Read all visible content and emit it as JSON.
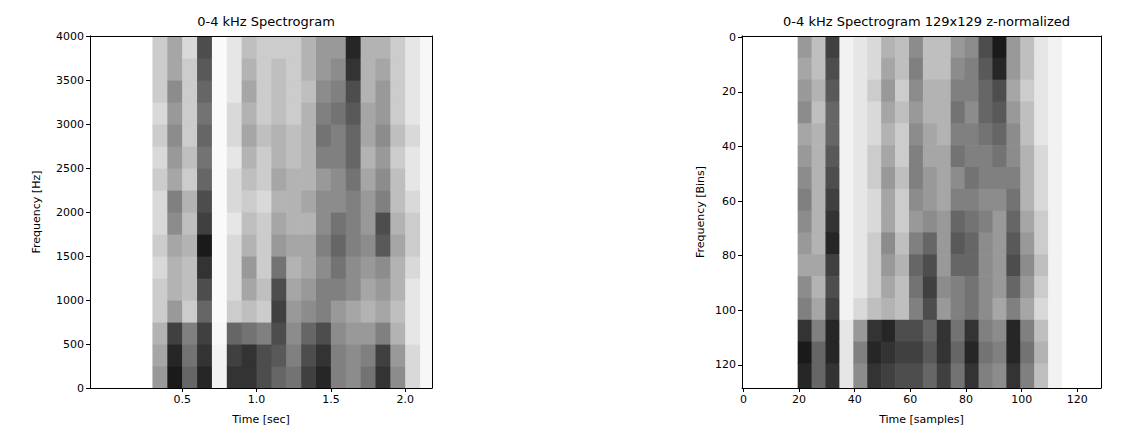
{
  "chart_data": [
    {
      "type": "heatmap",
      "title": "0-4 kHz Spectrogram",
      "x_label": "Time [sec]",
      "y_label": "Frequency [Hz]",
      "xlim": [
        -0.12,
        2.18
      ],
      "ylim": [
        0,
        4000
      ],
      "xticks": [
        0.5,
        {
          "value": 1,
          "label": "1.0"
        },
        1.5,
        {
          "value": 2,
          "label": "2.0"
        }
      ],
      "yticks": [
        0,
        500,
        1000,
        1500,
        2000,
        2500,
        3000,
        3500,
        4000
      ],
      "grid": false,
      "color": "#000000",
      "zlim": [
        0,
        1
      ],
      "cells": {
        "x_edges": [
          -0.12,
          0,
          0.1,
          0.2,
          0.3,
          0.4,
          0.5,
          0.6,
          0.7,
          0.8,
          0.9,
          1.0,
          1.1,
          1.2,
          1.3,
          1.4,
          1.5,
          1.6,
          1.7,
          1.8,
          1.9,
          2.0,
          2.1,
          2.18
        ],
        "y_edges": [
          0,
          250,
          500,
          750,
          1000,
          1250,
          1500,
          1750,
          2000,
          2250,
          2500,
          2750,
          3000,
          3250,
          3500,
          3750,
          4000
        ],
        "values": [
          [
            0,
            0,
            0,
            0,
            0,
            0,
            0,
            0,
            0,
            0,
            0,
            0,
            0,
            0,
            0,
            0
          ],
          [
            0,
            0,
            0,
            0,
            0,
            0,
            0,
            0,
            0,
            0,
            0,
            0,
            0,
            0,
            0,
            0
          ],
          [
            0,
            0,
            0,
            0,
            0,
            0,
            0,
            0,
            0,
            0,
            0,
            0,
            0,
            0,
            0,
            0
          ],
          [
            0,
            0,
            0,
            0,
            0,
            0,
            0,
            0,
            0,
            0,
            0,
            0,
            0,
            0,
            0,
            0
          ],
          [
            0.4,
            0.35,
            0.3,
            0.2,
            0.2,
            0.15,
            0.2,
            0.15,
            0.15,
            0.2,
            0.15,
            0.2,
            0.15,
            0.2,
            0.2,
            0.2
          ],
          [
            0.9,
            0.85,
            0.75,
            0.4,
            0.3,
            0.3,
            0.35,
            0.45,
            0.5,
            0.35,
            0.4,
            0.45,
            0.4,
            0.45,
            0.35,
            0.35
          ],
          [
            0.6,
            0.55,
            0.5,
            0.2,
            0.25,
            0.25,
            0.3,
            0.25,
            0.3,
            0.2,
            0.25,
            0.2,
            0.2,
            0.2,
            0.2,
            0.15
          ],
          [
            0.85,
            0.8,
            0.75,
            0.6,
            0.7,
            0.8,
            0.9,
            0.75,
            0.7,
            0.6,
            0.55,
            0.6,
            0.55,
            0.6,
            0.65,
            0.7
          ],
          [
            0.05,
            0.05,
            0.03,
            0.02,
            0.02,
            0.02,
            0.02,
            0.02,
            0.02,
            0.02,
            0.02,
            0.02,
            0.02,
            0.02,
            0.02,
            0.02
          ],
          [
            0.8,
            0.75,
            0.6,
            0.2,
            0.15,
            0.15,
            0.15,
            0.1,
            0.15,
            0.15,
            0.1,
            0.15,
            0.15,
            0.1,
            0.1,
            0.1
          ],
          [
            0.8,
            0.8,
            0.55,
            0.25,
            0.35,
            0.4,
            0.3,
            0.25,
            0.2,
            0.25,
            0.3,
            0.35,
            0.3,
            0.35,
            0.3,
            0.25
          ],
          [
            0.7,
            0.7,
            0.5,
            0.2,
            0.25,
            0.2,
            0.2,
            0.2,
            0.15,
            0.2,
            0.2,
            0.25,
            0.2,
            0.2,
            0.2,
            0.2
          ],
          [
            0.6,
            0.65,
            0.7,
            0.75,
            0.7,
            0.55,
            0.4,
            0.35,
            0.3,
            0.35,
            0.3,
            0.3,
            0.25,
            0.25,
            0.25,
            0.2
          ],
          [
            0.55,
            0.5,
            0.45,
            0.4,
            0.35,
            0.3,
            0.35,
            0.3,
            0.3,
            0.3,
            0.25,
            0.25,
            0.2,
            0.2,
            0.2,
            0.2
          ],
          [
            0.75,
            0.7,
            0.6,
            0.45,
            0.4,
            0.35,
            0.35,
            0.3,
            0.35,
            0.3,
            0.3,
            0.3,
            0.3,
            0.25,
            0.3,
            0.3
          ],
          [
            0.85,
            0.8,
            0.7,
            0.5,
            0.5,
            0.45,
            0.5,
            0.45,
            0.45,
            0.4,
            0.5,
            0.55,
            0.5,
            0.45,
            0.4,
            0.4
          ],
          [
            0.5,
            0.5,
            0.45,
            0.4,
            0.5,
            0.55,
            0.6,
            0.55,
            0.45,
            0.45,
            0.5,
            0.5,
            0.55,
            0.5,
            0.45,
            0.4
          ],
          [
            0.45,
            0.45,
            0.4,
            0.35,
            0.45,
            0.45,
            0.5,
            0.5,
            0.5,
            0.55,
            0.6,
            0.6,
            0.65,
            0.7,
            0.8,
            0.85
          ],
          [
            0.55,
            0.5,
            0.4,
            0.3,
            0.35,
            0.4,
            0.45,
            0.4,
            0.4,
            0.35,
            0.3,
            0.35,
            0.35,
            0.3,
            0.3,
            0.3
          ],
          [
            0.8,
            0.75,
            0.5,
            0.35,
            0.4,
            0.45,
            0.65,
            0.7,
            0.5,
            0.45,
            0.4,
            0.45,
            0.4,
            0.4,
            0.35,
            0.3
          ],
          [
            0.45,
            0.4,
            0.3,
            0.25,
            0.3,
            0.3,
            0.35,
            0.3,
            0.25,
            0.25,
            0.2,
            0.25,
            0.2,
            0.2,
            0.2,
            0.2
          ],
          [
            0.15,
            0.15,
            0.1,
            0.1,
            0.1,
            0.15,
            0.2,
            0.2,
            0.15,
            0.1,
            0.1,
            0.15,
            0.1,
            0.1,
            0.1,
            0.1
          ],
          [
            0.03,
            0.03,
            0.03,
            0.03,
            0.03,
            0.03,
            0.03,
            0.03,
            0.03,
            0.03,
            0.03,
            0.03,
            0.03,
            0.03,
            0.03,
            0.03
          ]
        ]
      }
    },
    {
      "type": "heatmap",
      "title": "0-4 kHz Spectrogram 129x129 z-normalized",
      "x_label": "Time [samples]",
      "y_label": "Frequency [Bins]",
      "xlim": [
        -0.5,
        128.5
      ],
      "ylim": [
        128.5,
        -0.5
      ],
      "xticks": [
        0,
        20,
        40,
        60,
        80,
        100,
        120
      ],
      "yticks": [
        0,
        20,
        40,
        60,
        80,
        100,
        120
      ],
      "grid": false,
      "color": "#000000",
      "zlim": [
        0,
        1
      ],
      "cells": {
        "x_edges": [
          -0.5,
          4.5,
          9.5,
          14.5,
          19.5,
          24.5,
          29.5,
          34.5,
          39.5,
          44.5,
          49.5,
          54.5,
          59.5,
          64.5,
          69.5,
          74.5,
          79.5,
          84.5,
          89.5,
          94.5,
          99.5,
          104.5,
          109.5,
          114.5,
          119.5,
          124.5,
          128.5
        ],
        "y_edges": [
          -0.5,
          7.5,
          15.5,
          23.5,
          31.5,
          39.5,
          47.5,
          55.5,
          63.5,
          71.5,
          79.5,
          87.5,
          95.5,
          103.5,
          111.5,
          119.5,
          128.5
        ],
        "values": [
          [
            0,
            0,
            0,
            0,
            0,
            0,
            0,
            0,
            0,
            0,
            0,
            0,
            0,
            0,
            0,
            0
          ],
          [
            0,
            0,
            0,
            0,
            0,
            0,
            0,
            0,
            0,
            0,
            0,
            0,
            0,
            0,
            0,
            0
          ],
          [
            0,
            0,
            0,
            0,
            0,
            0,
            0,
            0,
            0,
            0,
            0,
            0,
            0,
            0,
            0,
            0
          ],
          [
            0,
            0,
            0,
            0,
            0,
            0,
            0,
            0,
            0,
            0,
            0,
            0,
            0,
            0,
            0,
            0
          ],
          [
            0.4,
            0.35,
            0.4,
            0.45,
            0.35,
            0.4,
            0.45,
            0.5,
            0.45,
            0.4,
            0.35,
            0.45,
            0.5,
            0.8,
            0.9,
            0.85
          ],
          [
            0.25,
            0.25,
            0.3,
            0.25,
            0.3,
            0.3,
            0.3,
            0.3,
            0.3,
            0.3,
            0.35,
            0.3,
            0.35,
            0.5,
            0.6,
            0.6
          ],
          [
            0.75,
            0.7,
            0.65,
            0.6,
            0.6,
            0.65,
            0.7,
            0.75,
            0.8,
            0.85,
            0.75,
            0.7,
            0.75,
            0.85,
            0.85,
            0.8
          ],
          [
            0.05,
            0.05,
            0.05,
            0.05,
            0.05,
            0.05,
            0.05,
            0.05,
            0.05,
            0.05,
            0.05,
            0.05,
            0.05,
            0.1,
            0.1,
            0.1
          ],
          [
            0.1,
            0.1,
            0.1,
            0.1,
            0.1,
            0.1,
            0.1,
            0.1,
            0.1,
            0.1,
            0.1,
            0.1,
            0.15,
            0.4,
            0.5,
            0.45
          ],
          [
            0.15,
            0.15,
            0.2,
            0.15,
            0.15,
            0.2,
            0.2,
            0.15,
            0.15,
            0.2,
            0.2,
            0.2,
            0.25,
            0.8,
            0.85,
            0.8
          ],
          [
            0.3,
            0.35,
            0.4,
            0.35,
            0.3,
            0.35,
            0.4,
            0.35,
            0.35,
            0.45,
            0.4,
            0.35,
            0.3,
            0.85,
            0.8,
            0.75
          ],
          [
            0.25,
            0.25,
            0.2,
            0.25,
            0.2,
            0.2,
            0.25,
            0.2,
            0.2,
            0.25,
            0.3,
            0.25,
            0.25,
            0.7,
            0.75,
            0.7
          ],
          [
            0.45,
            0.5,
            0.45,
            0.4,
            0.45,
            0.5,
            0.5,
            0.45,
            0.4,
            0.5,
            0.6,
            0.55,
            0.5,
            0.7,
            0.75,
            0.7
          ],
          [
            0.25,
            0.25,
            0.3,
            0.3,
            0.35,
            0.35,
            0.4,
            0.4,
            0.45,
            0.6,
            0.7,
            0.75,
            0.7,
            0.6,
            0.65,
            0.6
          ],
          [
            0.25,
            0.25,
            0.3,
            0.3,
            0.3,
            0.35,
            0.35,
            0.35,
            0.4,
            0.4,
            0.4,
            0.45,
            0.4,
            0.8,
            0.8,
            0.75
          ],
          [
            0.4,
            0.45,
            0.5,
            0.55,
            0.5,
            0.55,
            0.45,
            0.5,
            0.6,
            0.65,
            0.6,
            0.5,
            0.5,
            0.55,
            0.6,
            0.55
          ],
          [
            0.45,
            0.5,
            0.5,
            0.45,
            0.5,
            0.5,
            0.55,
            0.5,
            0.55,
            0.6,
            0.6,
            0.55,
            0.55,
            0.8,
            0.85,
            0.8
          ],
          [
            0.7,
            0.65,
            0.6,
            0.6,
            0.55,
            0.5,
            0.5,
            0.45,
            0.5,
            0.45,
            0.45,
            0.45,
            0.45,
            0.5,
            0.55,
            0.5
          ],
          [
            0.9,
            0.85,
            0.7,
            0.65,
            0.6,
            0.55,
            0.5,
            0.45,
            0.4,
            0.4,
            0.4,
            0.4,
            0.35,
            0.45,
            0.5,
            0.45
          ],
          [
            0.4,
            0.4,
            0.35,
            0.4,
            0.45,
            0.45,
            0.5,
            0.55,
            0.6,
            0.65,
            0.7,
            0.6,
            0.5,
            0.85,
            0.85,
            0.8
          ],
          [
            0.25,
            0.25,
            0.2,
            0.25,
            0.25,
            0.3,
            0.3,
            0.3,
            0.35,
            0.4,
            0.45,
            0.4,
            0.35,
            0.5,
            0.55,
            0.5
          ],
          [
            0.1,
            0.1,
            0.1,
            0.1,
            0.1,
            0.15,
            0.15,
            0.15,
            0.2,
            0.2,
            0.25,
            0.2,
            0.15,
            0.25,
            0.3,
            0.25
          ],
          [
            0.05,
            0.05,
            0.05,
            0.05,
            0.05,
            0.05,
            0.05,
            0.05,
            0.05,
            0.05,
            0.05,
            0.05,
            0.05,
            0.05,
            0.05,
            0.05
          ],
          [
            0,
            0,
            0,
            0,
            0,
            0,
            0,
            0,
            0,
            0,
            0,
            0,
            0,
            0,
            0,
            0
          ],
          [
            0,
            0,
            0,
            0,
            0,
            0,
            0,
            0,
            0,
            0,
            0,
            0,
            0,
            0,
            0,
            0
          ],
          [
            0,
            0,
            0,
            0,
            0,
            0,
            0,
            0,
            0,
            0,
            0,
            0,
            0,
            0,
            0,
            0
          ]
        ]
      }
    }
  ]
}
